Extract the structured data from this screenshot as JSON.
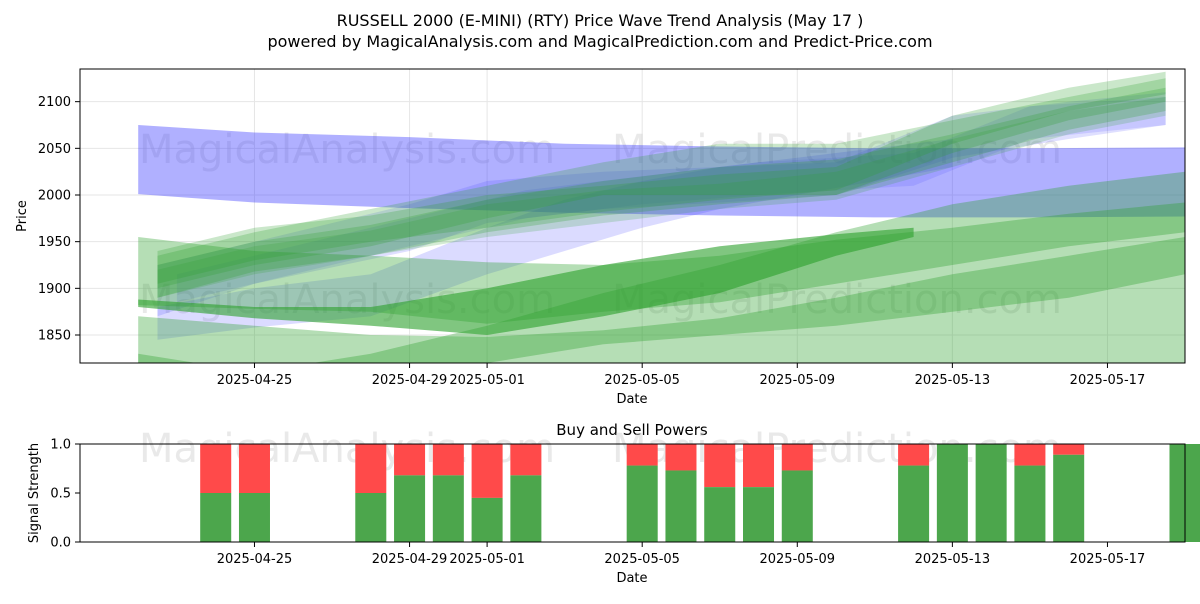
{
  "chart_data": [
    {
      "type": "area",
      "title": "RUSSELL 2000 (E-MINI) (RTY) Price Wave Trend Analysis (May 17 )",
      "subtitle": "powered by MagicalAnalysis.com and MagicalPrediction.com and Predict-Price.com",
      "xlabel": "Date",
      "ylabel": "Price",
      "ylim": [
        1820,
        2135
      ],
      "x_range_days": [
        -4.5,
        24
      ],
      "x_ticks": [
        {
          "label": "2025-04-25",
          "day": 0
        },
        {
          "label": "2025-04-29",
          "day": 4
        },
        {
          "label": "2025-05-01",
          "day": 6
        },
        {
          "label": "2025-05-05",
          "day": 10
        },
        {
          "label": "2025-05-09",
          "day": 14
        },
        {
          "label": "2025-05-13",
          "day": 18
        },
        {
          "label": "2025-05-17",
          "day": 22
        }
      ],
      "y_ticks": [
        1850,
        1900,
        1950,
        2000,
        2050,
        2100
      ],
      "grid": true,
      "watermarks": [
        "MagicalAnalysis.com",
        "MagicalPrediction.com",
        "MagicalAnalysis.com",
        "MagicalPrediction.com"
      ],
      "colors": {
        "green": "#2ca02c",
        "blue": "#3a3aff"
      },
      "series": [
        {
          "name": "blue wave 1",
          "color": "blue",
          "opacity": 0.4,
          "x": [
            -3,
            0,
            4,
            8,
            12,
            16,
            20,
            24
          ],
          "upper": [
            2075,
            2067,
            2062,
            2055,
            2052,
            2050,
            2050,
            2051
          ],
          "lower": [
            2001,
            1992,
            1986,
            1981,
            1978,
            1976,
            1976,
            1977
          ]
        },
        {
          "name": "blue wave 2",
          "color": "blue",
          "opacity": 0.18,
          "x": [
            -2.5,
            0,
            3,
            6,
            8,
            10,
            12,
            14,
            16,
            18
          ],
          "upper": [
            1880,
            1900,
            1915,
            1965,
            1995,
            2015,
            2030,
            2040,
            2050,
            2060
          ],
          "lower": [
            1845,
            1858,
            1870,
            1915,
            1940,
            1965,
            1985,
            2000,
            2015,
            2030
          ]
        },
        {
          "name": "blue wave 3",
          "color": "blue",
          "opacity": 0.16,
          "x": [
            -2.5,
            0,
            4,
            6,
            9,
            12,
            15,
            18,
            21,
            23.5
          ],
          "upper": [
            1925,
            1950,
            1990,
            2015,
            2025,
            2030,
            2035,
            2085,
            2100,
            2110
          ],
          "lower": [
            1870,
            1905,
            1940,
            1970,
            1985,
            1992,
            2000,
            2040,
            2060,
            2075
          ]
        },
        {
          "name": "blue wave 4",
          "color": "blue",
          "opacity": 0.14,
          "x": [
            -2,
            1,
            4,
            7,
            10,
            13,
            17,
            20,
            23.5
          ],
          "upper": [
            1915,
            1945,
            1975,
            2005,
            2020,
            2035,
            2045,
            2095,
            2105
          ],
          "lower": [
            1885,
            1915,
            1945,
            1975,
            1990,
            2000,
            2010,
            2060,
            2075
          ]
        },
        {
          "name": "green wave 1",
          "color": "green",
          "opacity": 0.35,
          "x": [
            -3,
            0,
            3,
            6,
            9,
            12,
            15,
            18,
            21,
            24
          ],
          "upper": [
            1955,
            1940,
            1935,
            1928,
            1925,
            1935,
            1952,
            1965,
            1980,
            1992
          ],
          "lower": [
            1882,
            1878,
            1875,
            1862,
            1875,
            1885,
            1905,
            1925,
            1945,
            1960
          ]
        },
        {
          "name": "green wave 2",
          "color": "green",
          "opacity": 0.35,
          "x": [
            -3,
            0,
            3,
            6,
            9,
            12,
            15,
            18,
            21,
            24
          ],
          "upper": [
            1830,
            1810,
            1830,
            1860,
            1895,
            1925,
            1960,
            1990,
            2010,
            2025
          ]
        },
        {
          "name": "green wave 3",
          "color": "green",
          "opacity": 0.35,
          "x": [
            -3,
            0,
            3,
            6,
            9,
            12,
            15,
            18,
            21,
            24
          ],
          "upper": [
            1870,
            1860,
            1850,
            1848,
            1855,
            1868,
            1890,
            1915,
            1935,
            1955
          ],
          "lower": [
            1820,
            1810,
            1808,
            1820,
            1840,
            1850,
            1860,
            1875,
            1890,
            1915
          ]
        },
        {
          "name": "green wave 4",
          "color": "green",
          "opacity": 0.6,
          "x": [
            -3,
            0,
            3,
            6,
            9,
            12,
            15,
            17
          ],
          "upper": [
            1888,
            1880,
            1880,
            1900,
            1925,
            1945,
            1958,
            1965
          ],
          "lower": [
            1880,
            1868,
            1860,
            1850,
            1870,
            1895,
            1935,
            1955
          ]
        },
        {
          "name": "green wave 5",
          "color": "green",
          "opacity": 0.25,
          "x": [
            -2.5,
            0,
            3,
            6,
            9,
            12,
            15,
            18,
            21,
            23.5
          ],
          "upper": [
            1935,
            1960,
            1985,
            2010,
            2035,
            2055,
            2055,
            2080,
            2105,
            2125
          ],
          "lower": [
            1900,
            1925,
            1945,
            1975,
            2000,
            2000,
            2000,
            2035,
            2070,
            2090
          ]
        },
        {
          "name": "green wave 6",
          "color": "green",
          "opacity": 0.25,
          "x": [
            -2.5,
            0,
            3,
            6,
            9,
            12,
            15,
            18,
            21,
            23.5
          ],
          "upper": [
            1925,
            1950,
            1968,
            1995,
            2015,
            2030,
            2038,
            2065,
            2095,
            2115
          ],
          "lower": [
            1890,
            1918,
            1935,
            1960,
            1978,
            1990,
            2000,
            2045,
            2080,
            2100
          ]
        },
        {
          "name": "green wave 7",
          "color": "green",
          "opacity": 0.25,
          "x": [
            -2.5,
            0,
            3,
            6,
            9,
            12,
            15,
            18,
            21,
            23.5
          ],
          "upper": [
            1940,
            1965,
            1978,
            2000,
            2010,
            2022,
            2030,
            2085,
            2115,
            2132
          ],
          "lower": [
            1905,
            1930,
            1950,
            1965,
            1982,
            1995,
            2005,
            2055,
            2090,
            2108
          ]
        },
        {
          "name": "green wave 8",
          "color": "green",
          "opacity": 0.2,
          "x": [
            -2.5,
            0,
            3,
            6,
            9,
            12,
            15,
            18,
            21,
            23.5
          ],
          "upper": [
            1920,
            1945,
            1962,
            1990,
            2005,
            2012,
            2025,
            2060,
            2090,
            2105
          ],
          "lower": [
            1890,
            1915,
            1935,
            1955,
            1970,
            1985,
            1995,
            2030,
            2065,
            2085
          ]
        }
      ]
    },
    {
      "type": "bar",
      "title": "Buy and Sell Powers",
      "xlabel": "Date",
      "ylabel": "Signal Strength",
      "ylim": [
        0,
        1
      ],
      "y_ticks": [
        "0.0",
        "0.5",
        "1.0"
      ],
      "x_range_days": [
        -4.5,
        24
      ],
      "x_ticks": [
        {
          "label": "2025-04-25",
          "day": 0
        },
        {
          "label": "2025-04-29",
          "day": 4
        },
        {
          "label": "2025-05-01",
          "day": 6
        },
        {
          "label": "2025-05-05",
          "day": 10
        },
        {
          "label": "2025-05-09",
          "day": 14
        },
        {
          "label": "2025-05-13",
          "day": 18
        },
        {
          "label": "2025-05-17",
          "day": 22
        }
      ],
      "colors": {
        "buy": "#4ca64c",
        "sell": "#ff4a4a"
      },
      "bars": [
        {
          "date": "2025-04-24",
          "day": -1,
          "buy": 0.5
        },
        {
          "date": "2025-04-25",
          "day": 0,
          "buy": 0.5
        },
        {
          "date": "2025-04-28",
          "day": 3,
          "buy": 0.5
        },
        {
          "date": "2025-04-29",
          "day": 4,
          "buy": 0.68
        },
        {
          "date": "2025-04-30",
          "day": 5,
          "buy": 0.68
        },
        {
          "date": "2025-05-01",
          "day": 6,
          "buy": 0.45
        },
        {
          "date": "2025-05-02",
          "day": 7,
          "buy": 0.68
        },
        {
          "date": "2025-05-05",
          "day": 10,
          "buy": 0.78
        },
        {
          "date": "2025-05-06",
          "day": 11,
          "buy": 0.73
        },
        {
          "date": "2025-05-07",
          "day": 12,
          "buy": 0.56
        },
        {
          "date": "2025-05-08",
          "day": 13,
          "buy": 0.56
        },
        {
          "date": "2025-05-09",
          "day": 14,
          "buy": 0.73
        },
        {
          "date": "2025-05-12",
          "day": 17,
          "buy": 0.78
        },
        {
          "date": "2025-05-13",
          "day": 18,
          "buy": 1.0
        },
        {
          "date": "2025-05-14",
          "day": 19,
          "buy": 1.0
        },
        {
          "date": "2025-05-15",
          "day": 20,
          "buy": 0.78
        },
        {
          "date": "2025-05-16",
          "day": 21,
          "buy": 0.89
        },
        {
          "date": "2025-05-19",
          "day": 24,
          "buy": 1.0
        }
      ]
    }
  ]
}
